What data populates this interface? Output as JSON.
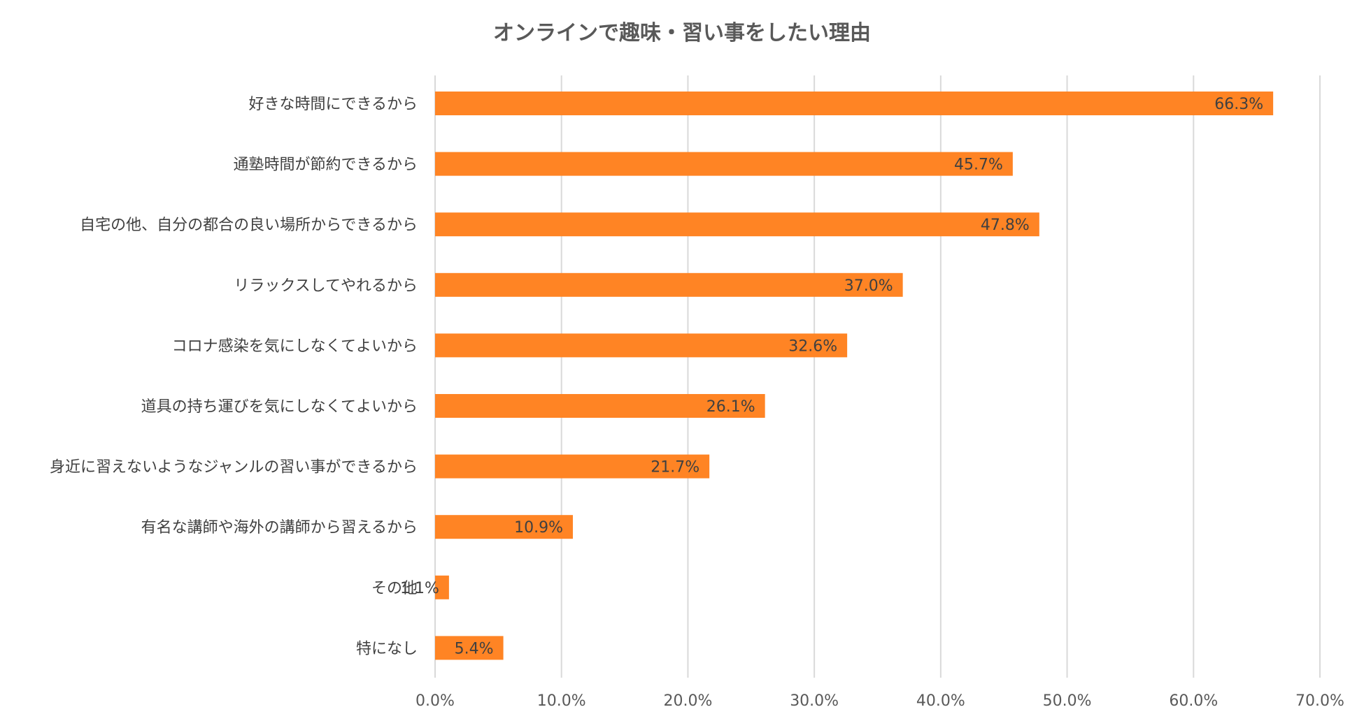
{
  "chart_data": {
    "type": "bar",
    "orientation": "horizontal",
    "title": "オンラインで趣味・習い事をしたい理由",
    "xlabel": "",
    "ylabel": "",
    "xlim": [
      0,
      70
    ],
    "x_ticks": [
      "0.0%",
      "10.0%",
      "20.0%",
      "30.0%",
      "40.0%",
      "50.0%",
      "60.0%",
      "70.0%"
    ],
    "grid": "vertical",
    "legend": "none",
    "bar_color": "#FF8424",
    "categories": [
      "好きな時間にできるから",
      "通塾時間が節約できるから",
      "自宅の他、自分の都合の良い場所からできるから",
      "リラックスしてやれるから",
      "コロナ感染を気にしなくてよいから",
      "道具の持ち運びを気にしなくてよいから",
      "身近に習えないようなジャンルの習い事ができるから",
      "有名な講師や海外の講師から習えるから",
      "その他",
      "特になし"
    ],
    "values": [
      66.3,
      45.7,
      47.8,
      37.0,
      32.6,
      26.1,
      21.7,
      10.9,
      1.1,
      5.4
    ],
    "data_labels": [
      "66.3%",
      "45.7%",
      "47.8%",
      "37.0%",
      "32.6%",
      "26.1%",
      "21.7%",
      "10.9%",
      "1.1%",
      "5.4%"
    ]
  }
}
